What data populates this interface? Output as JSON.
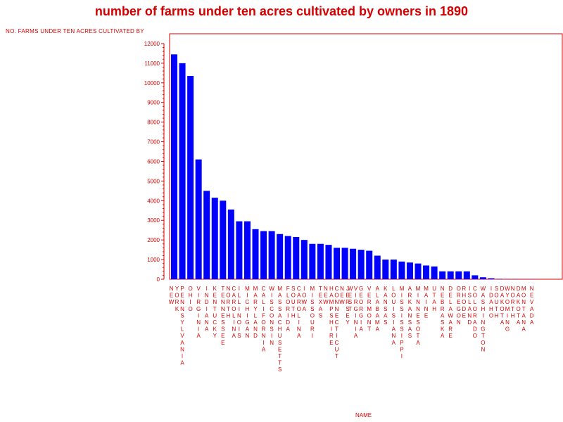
{
  "chart_data": {
    "type": "bar",
    "title": "number of farms under ten acres cultivated by owners in 1890",
    "ylabel": "NO. FARMS UNDER TEN ACRES CULTIVATED BY",
    "xlabel": "NAME",
    "ylim": [
      0,
      12500
    ],
    "yticks": [
      0,
      1000,
      2000,
      3000,
      4000,
      5000,
      6000,
      7000,
      8000,
      9000,
      10000,
      11000,
      12000
    ],
    "grid": false,
    "colors": {
      "bar": "#0000ff",
      "text": "#d40000",
      "axis": "#d40000"
    },
    "categories": [
      "NEW YORK",
      "PENNSYLVANIA",
      "OHIO",
      "VIRGINIA",
      "INDIANA",
      "KENTUCKY",
      "TENNESSEE",
      "NORTH CAROLINA",
      "ILLINOIS",
      "MICHIGAN",
      "MARYLAND",
      "CALIFORNIA",
      "WISCONSIN",
      "MASSACHUSETTS",
      "FLORIDA",
      "SOUTH CAROLINA",
      "IOWA",
      "MISSOURI",
      "TEXAS",
      "NEW HAMPSHIRE",
      "CONNECTICUT",
      "NEW JERSEY",
      "WEST VIRGINIA",
      "GEORGIA",
      "VERMONT",
      "ALABAMA",
      "KANSAS",
      "LOUISIANA",
      "MISSISSIPPI",
      "ARKANSAS",
      "MINNESOTA",
      "MAINE",
      "UTAH",
      "NEBRASKA",
      "DELAWARE",
      "OREGON",
      "RHODE ISLAND",
      "COLORADO",
      "WASHINGTON",
      "IDAHO",
      "SOUTH DAKOTA",
      "WYOMING",
      "NORTH DAKOTA",
      "MONTANA",
      "NEVADA"
    ],
    "values": [
      11450,
      11000,
      10350,
      6100,
      4500,
      4150,
      4000,
      3550,
      2950,
      2950,
      2550,
      2450,
      2450,
      2300,
      2200,
      2150,
      2000,
      1800,
      1800,
      1750,
      1600,
      1600,
      1550,
      1500,
      1450,
      1200,
      1000,
      1000,
      900,
      850,
      800,
      700,
      650,
      400,
      400,
      400,
      400,
      200,
      100,
      50,
      20,
      10,
      10,
      5,
      5
    ]
  }
}
